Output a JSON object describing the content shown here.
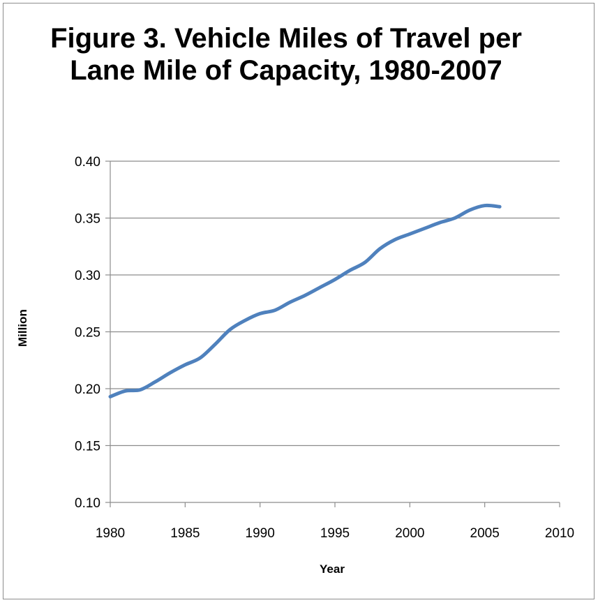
{
  "chart_data": {
    "type": "line",
    "title": "Figure 3. Vehicle Miles of Travel per Lane Mile of Capacity, 1980-2007",
    "xlabel": "Year",
    "ylabel": "Million",
    "xlim": [
      1980,
      2010
    ],
    "ylim": [
      0.1,
      0.4
    ],
    "xticks": [
      1980,
      1985,
      1990,
      1995,
      2000,
      2005,
      2010
    ],
    "yticks": [
      "0.10",
      "0.15",
      "0.20",
      "0.25",
      "0.30",
      "0.35",
      "0.40"
    ],
    "grid": "horizontal",
    "legend": "none",
    "series": [
      {
        "color": "#4f81bd",
        "x": [
          1980,
          1981,
          1982,
          1983,
          1984,
          1985,
          1986,
          1987,
          1988,
          1989,
          1990,
          1991,
          1992,
          1993,
          1994,
          1995,
          1996,
          1997,
          1998,
          1999,
          2000,
          2001,
          2002,
          2003,
          2004,
          2005,
          2006
        ],
        "y": [
          0.193,
          0.198,
          0.199,
          0.206,
          0.214,
          0.221,
          0.227,
          0.239,
          0.252,
          0.26,
          0.266,
          0.269,
          0.276,
          0.282,
          0.289,
          0.296,
          0.304,
          0.311,
          0.323,
          0.331,
          0.336,
          0.341,
          0.346,
          0.35,
          0.357,
          0.361,
          0.36
        ]
      }
    ]
  }
}
